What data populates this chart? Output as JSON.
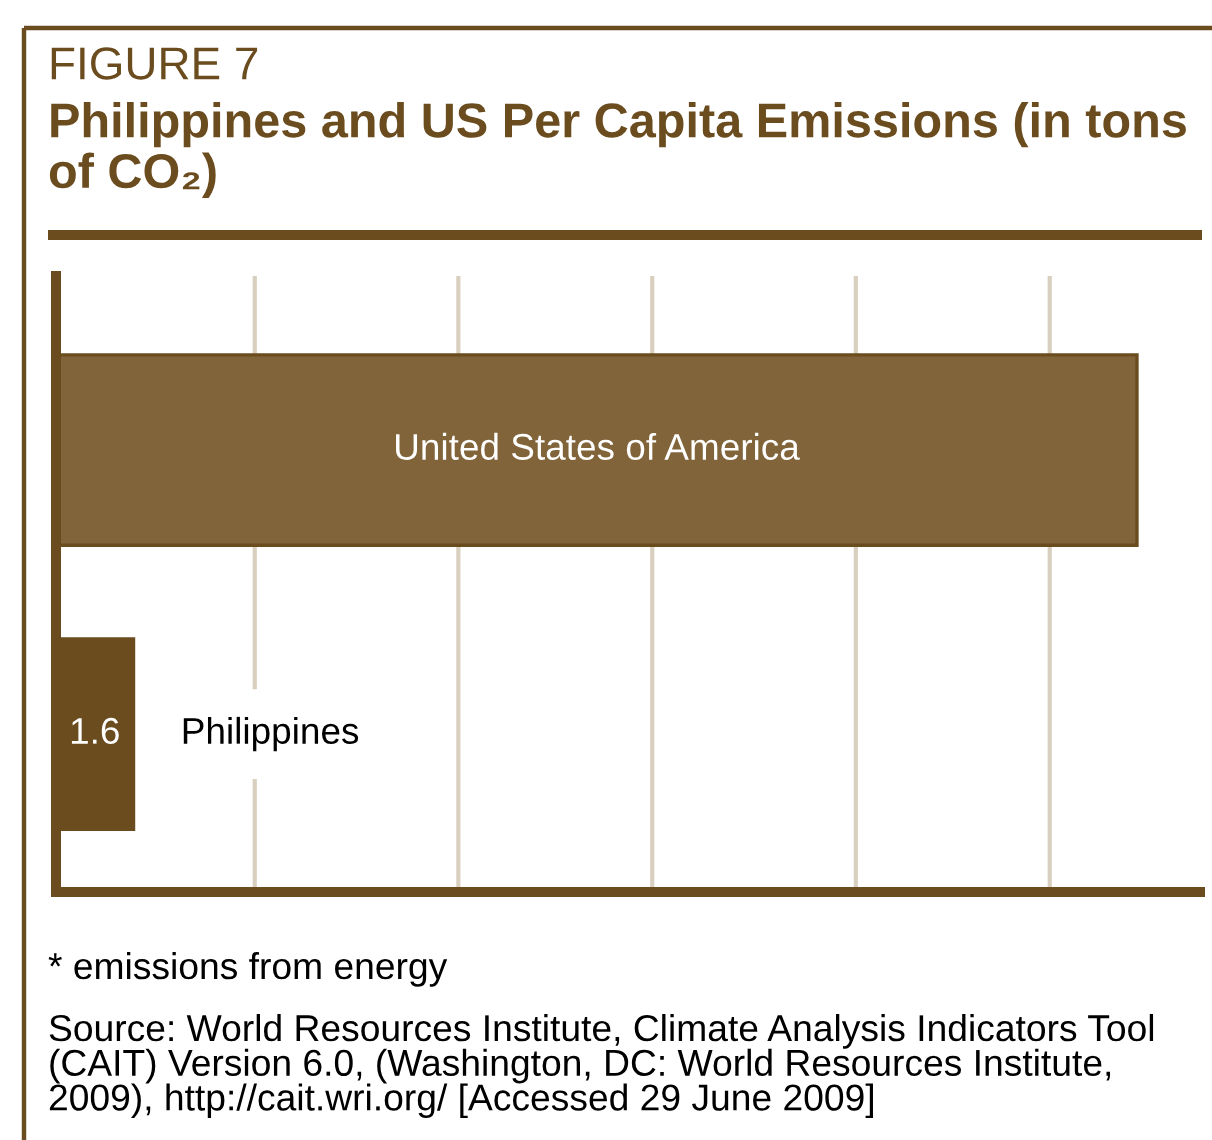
{
  "chart_data": {
    "type": "bar",
    "orientation": "horizontal",
    "subtitle": "FIGURE 7",
    "title": "Philippines and US Per Capita Emissions (in tons of CO₂)",
    "categories": [
      "United States of America",
      "Philippines"
    ],
    "values": [
      22.3,
      1.6
    ],
    "colors": [
      "#81643a",
      "#6a4c1f"
    ],
    "value_labels": [
      null,
      "1.6"
    ],
    "xlim": [
      0,
      23.6
    ],
    "xticks": [
      {
        "value": 4.1,
        "label": null
      },
      {
        "value": 8.3,
        "label": null
      },
      {
        "value": 12.3,
        "label": null
      },
      {
        "value": 16.5,
        "label": null
      },
      {
        "value": 20.5,
        "label": null
      }
    ],
    "grid": "x",
    "tick_labels": "y",
    "annotations": [
      "* emissions from energy",
      "Source: World Resources Institute, Climate Analysis Indicators Tool (CAIT) Version 6.0, (Washington, DC: World Resources Institute, 2009), http://cait.wri.org/ [Accessed 29 June 2009]"
    ]
  }
}
